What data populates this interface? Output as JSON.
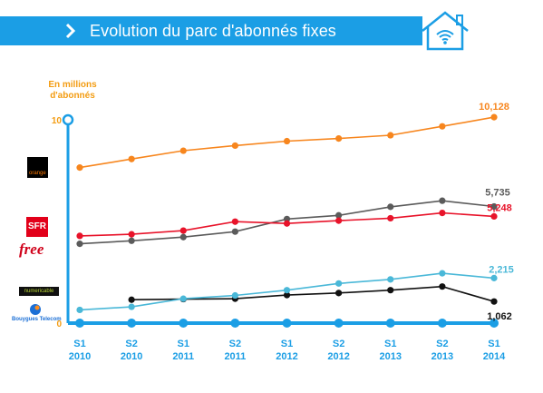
{
  "header": {
    "title": "Evolution du parc d'abonnés fixes",
    "color": "#1b9ee5"
  },
  "icons": {
    "left": "bar-chart-icon",
    "chevron": "chevron-right-icon",
    "right": "house-wifi-icon"
  },
  "chart_data": {
    "type": "line",
    "ylabel": "En millions d'abonnés",
    "ylim": [
      0,
      10
    ],
    "ytick_labels": [
      "0",
      "10"
    ],
    "categories": [
      "S1\n2010",
      "S2\n2010",
      "S1\n2011",
      "S2\n2011",
      "S1\n2012",
      "S2\n2012",
      "S1\n2013",
      "S2\n2013",
      "S1\n2014"
    ],
    "grid": false,
    "series": [
      {
        "name": "Orange",
        "color": "#f7861e",
        "values": [
          7.65,
          8.07,
          8.48,
          8.73,
          8.95,
          9.08,
          9.24,
          9.68,
          10.128
        ],
        "end_label": "10,128"
      },
      {
        "name": "Free",
        "color": "#5b5b5b",
        "values": [
          3.9,
          4.05,
          4.23,
          4.5,
          5.12,
          5.3,
          5.72,
          6.02,
          5.735
        ],
        "end_label": "5,735"
      },
      {
        "name": "SFR",
        "color": "#e8132a",
        "values": [
          4.29,
          4.37,
          4.55,
          4.99,
          4.9,
          5.04,
          5.16,
          5.42,
          5.248
        ],
        "end_label": "5,248"
      },
      {
        "name": "Numericable",
        "color": "#111111",
        "values": [
          null,
          1.15,
          1.18,
          1.2,
          1.38,
          1.48,
          1.62,
          1.8,
          1.062
        ],
        "end_label": "1,062"
      },
      {
        "name": "Bouygues Telecom",
        "color": "#4ab8d8",
        "values": [
          0.65,
          0.8,
          1.2,
          1.36,
          1.62,
          1.95,
          2.15,
          2.45,
          2.215
        ],
        "end_label": "2,215"
      }
    ]
  },
  "logos": {
    "orange": "orange",
    "sfr": "SFR",
    "free": "free",
    "numericable": "numericable",
    "bouygues": "Bouygues Telecom"
  }
}
